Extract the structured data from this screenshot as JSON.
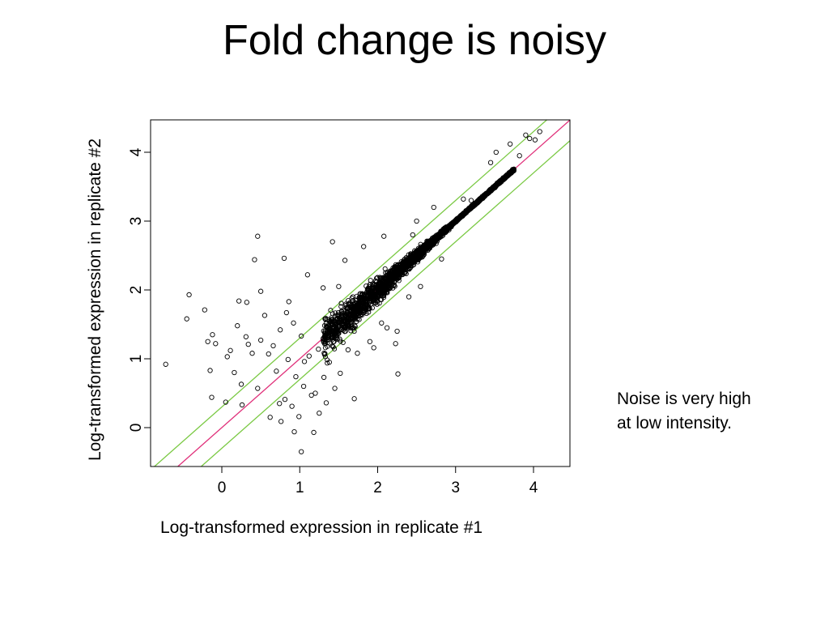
{
  "slide": {
    "title": "Fold change is noisy",
    "note": "Noise is very high at low intensity."
  },
  "chart_data": {
    "type": "scatter",
    "title": "",
    "xlabel": "Log-transformed expression in replicate #1",
    "ylabel": "Log-transformed expression in replicate #2",
    "xlim": [
      -0.9,
      4.5
    ],
    "ylim": [
      -0.55,
      4.5
    ],
    "x_ticks": [
      0,
      1,
      2,
      3,
      4
    ],
    "y_ticks": [
      0,
      1,
      2,
      3,
      4
    ],
    "grid": false,
    "marker": "open-circle",
    "marker_color": "#000000",
    "reference_lines": [
      {
        "name": "identity",
        "intercept": 0,
        "slope": 1,
        "color": "#e0307a"
      },
      {
        "name": "upper fold-change bound",
        "intercept": 0.3,
        "slope": 1,
        "color": "#7ac943"
      },
      {
        "name": "lower fold-change bound",
        "intercept": -0.3,
        "slope": 1,
        "color": "#7ac943"
      }
    ],
    "dense_core": {
      "description": "thousands of overlapping points along the diagonal",
      "x_range": [
        1.3,
        3.75
      ],
      "spread": [
        0.3,
        0.02
      ]
    },
    "points": [
      [
        -0.72,
        0.92
      ],
      [
        -0.42,
        1.93
      ],
      [
        -0.45,
        1.58
      ],
      [
        -0.22,
        1.71
      ],
      [
        -0.18,
        1.25
      ],
      [
        -0.15,
        0.83
      ],
      [
        -0.13,
        0.44
      ],
      [
        -0.12,
        1.35
      ],
      [
        -0.08,
        1.22
      ],
      [
        0.05,
        0.37
      ],
      [
        0.07,
        1.03
      ],
      [
        0.11,
        1.12
      ],
      [
        0.16,
        0.8
      ],
      [
        0.2,
        1.48
      ],
      [
        0.22,
        1.84
      ],
      [
        0.25,
        0.63
      ],
      [
        0.26,
        0.33
      ],
      [
        0.31,
        1.32
      ],
      [
        0.32,
        1.82
      ],
      [
        0.34,
        1.21
      ],
      [
        0.39,
        1.08
      ],
      [
        0.42,
        2.44
      ],
      [
        0.46,
        0.57
      ],
      [
        0.46,
        2.78
      ],
      [
        0.5,
        1.98
      ],
      [
        0.5,
        1.27
      ],
      [
        0.55,
        1.63
      ],
      [
        0.6,
        1.07
      ],
      [
        0.62,
        0.15
      ],
      [
        0.66,
        1.19
      ],
      [
        0.7,
        0.82
      ],
      [
        0.74,
        0.35
      ],
      [
        0.75,
        1.42
      ],
      [
        0.76,
        0.09
      ],
      [
        0.8,
        2.46
      ],
      [
        0.81,
        0.41
      ],
      [
        0.83,
        1.67
      ],
      [
        0.85,
        0.99
      ],
      [
        0.86,
        1.83
      ],
      [
        0.9,
        0.31
      ],
      [
        0.92,
        1.52
      ],
      [
        0.93,
        -0.06
      ],
      [
        0.95,
        0.74
      ],
      [
        0.99,
        0.16
      ],
      [
        1.02,
        1.33
      ],
      [
        1.02,
        -0.35
      ],
      [
        1.05,
        0.6
      ],
      [
        1.06,
        0.96
      ],
      [
        1.1,
        2.22
      ],
      [
        1.12,
        1.04
      ],
      [
        1.15,
        0.47
      ],
      [
        1.18,
        -0.07
      ],
      [
        1.2,
        0.5
      ],
      [
        1.24,
        1.14
      ],
      [
        1.25,
        0.21
      ],
      [
        1.3,
        2.03
      ],
      [
        1.31,
        0.73
      ],
      [
        1.34,
        0.36
      ],
      [
        1.38,
        0.95
      ],
      [
        1.42,
        2.7
      ],
      [
        1.45,
        0.57
      ],
      [
        1.5,
        2.05
      ],
      [
        1.52,
        0.79
      ],
      [
        1.58,
        2.43
      ],
      [
        1.62,
        1.13
      ],
      [
        1.7,
        0.42
      ],
      [
        1.74,
        1.08
      ],
      [
        1.78,
        1.87
      ],
      [
        1.82,
        2.63
      ],
      [
        1.9,
        1.25
      ],
      [
        1.95,
        1.16
      ],
      [
        2.05,
        1.52
      ],
      [
        2.08,
        2.78
      ],
      [
        2.12,
        1.45
      ],
      [
        2.23,
        1.22
      ],
      [
        2.25,
        1.4
      ],
      [
        2.26,
        0.78
      ],
      [
        2.33,
        2.33
      ],
      [
        2.4,
        1.9
      ],
      [
        2.45,
        2.8
      ],
      [
        2.5,
        3.0
      ],
      [
        2.55,
        2.05
      ],
      [
        2.72,
        3.2
      ],
      [
        2.82,
        2.45
      ],
      [
        3.1,
        3.32
      ],
      [
        3.2,
        3.3
      ],
      [
        3.45,
        3.85
      ],
      [
        3.52,
        4.0
      ],
      [
        3.7,
        4.12
      ],
      [
        3.82,
        3.95
      ],
      [
        3.9,
        4.25
      ],
      [
        3.95,
        4.2
      ],
      [
        4.02,
        4.18
      ],
      [
        4.08,
        4.3
      ]
    ]
  }
}
